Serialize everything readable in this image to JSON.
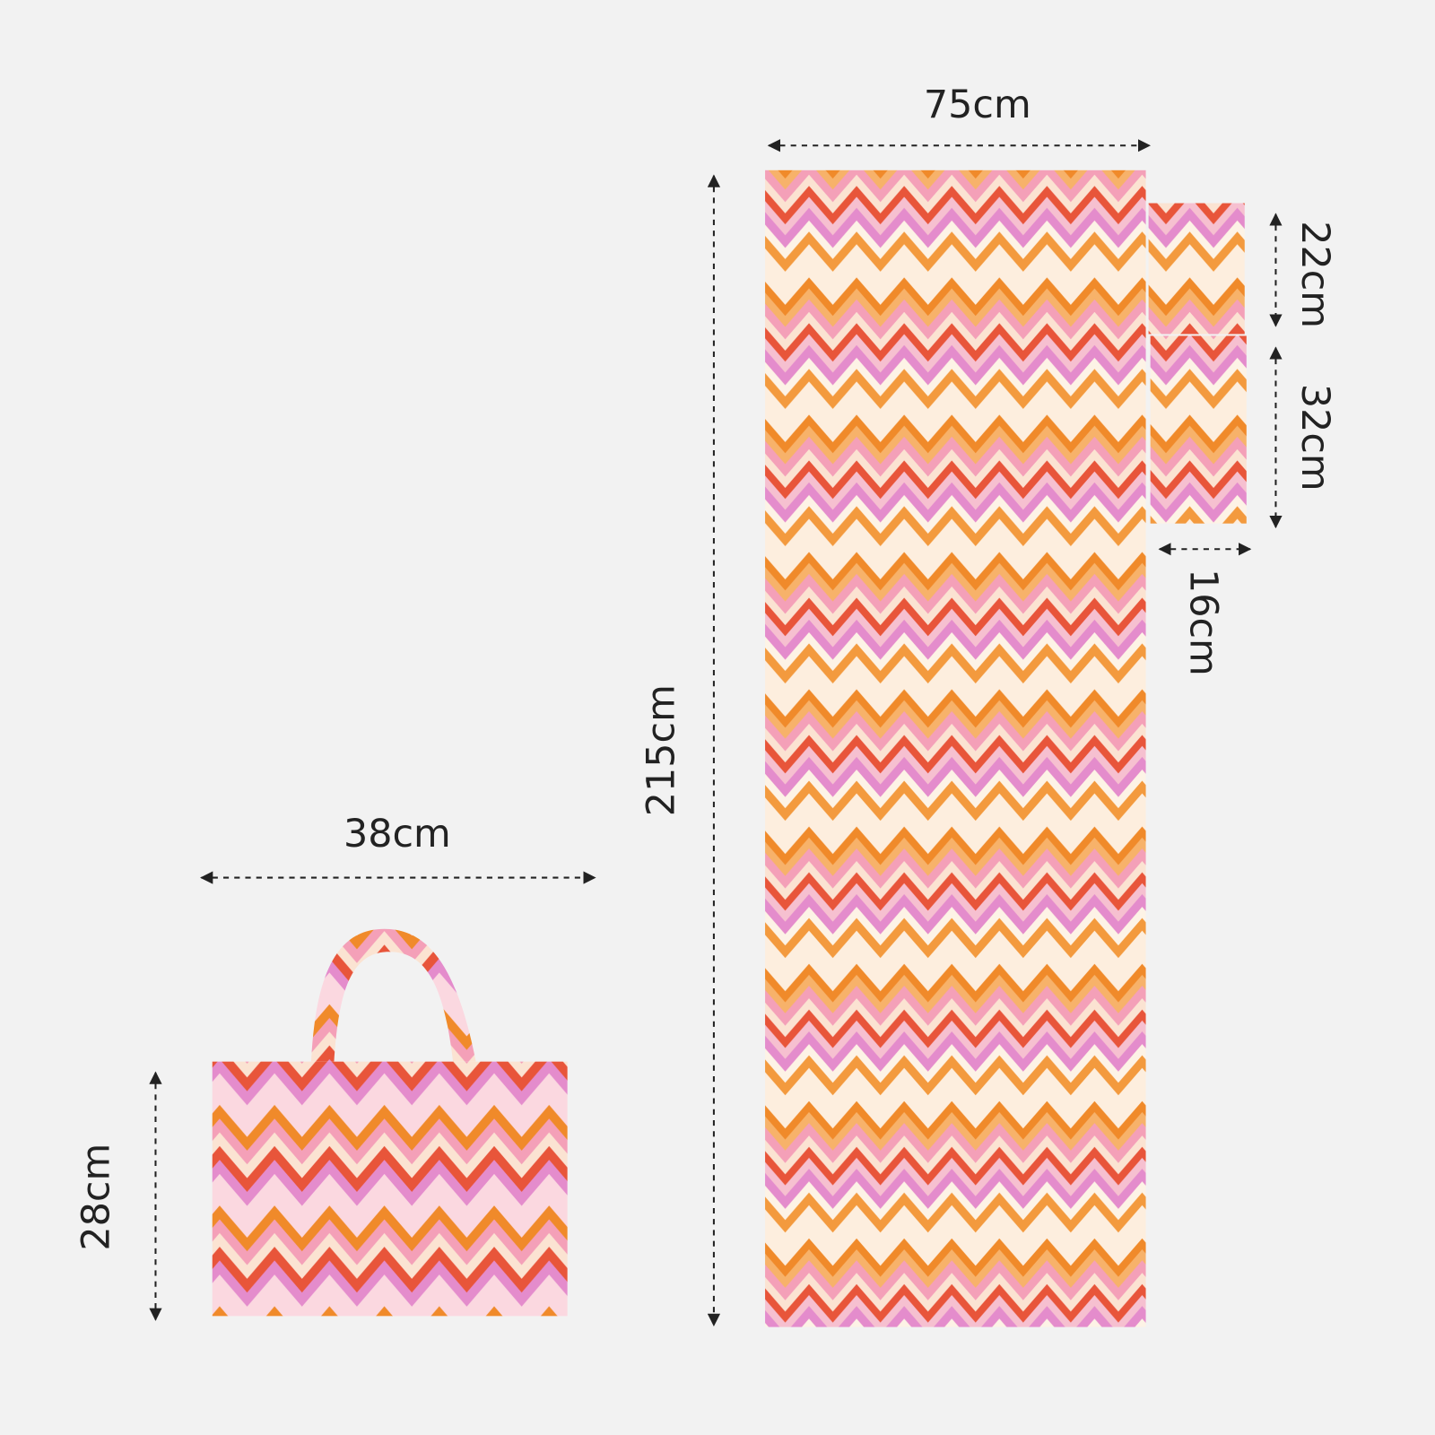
{
  "towel": {
    "width": "75cm",
    "length": "215cm"
  },
  "pillow": {
    "upper_height": "22cm",
    "lower_height": "32cm",
    "width": "16cm"
  },
  "bag": {
    "width": "38cm",
    "height": "28cm"
  }
}
